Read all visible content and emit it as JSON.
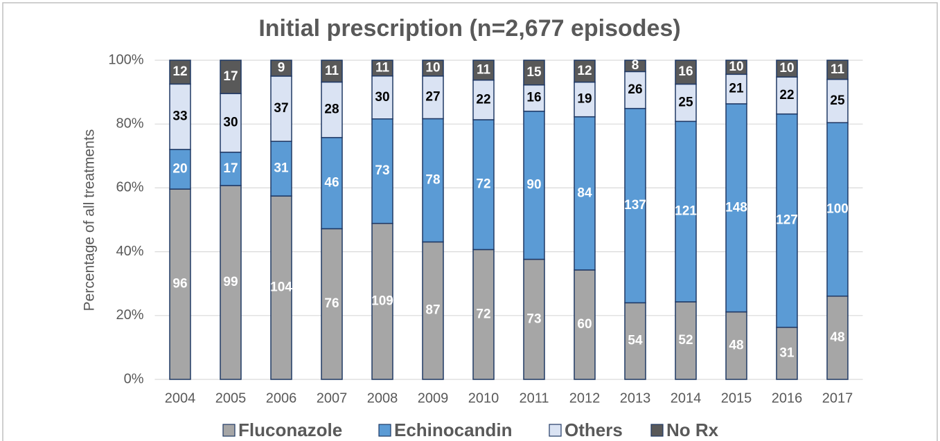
{
  "chart_data": {
    "type": "bar",
    "stacking": "percent",
    "title": "Initial prescription (n=2,677 episodes)",
    "y_label": "Percentage of all treatments",
    "categories": [
      "2004",
      "2005",
      "2006",
      "2007",
      "2008",
      "2009",
      "2010",
      "2011",
      "2012",
      "2013",
      "2014",
      "2015",
      "2016",
      "2017"
    ],
    "series": [
      {
        "name": "Fluconazole",
        "color": "#a6a6a6",
        "label_color": "#ffffff",
        "values": [
          96,
          99,
          104,
          76,
          109,
          87,
          72,
          73,
          60,
          54,
          52,
          48,
          31,
          48
        ]
      },
      {
        "name": "Echinocandin",
        "color": "#5b9bd5",
        "label_color": "#ffffff",
        "values": [
          20,
          17,
          31,
          46,
          73,
          78,
          72,
          90,
          84,
          137,
          121,
          148,
          127,
          100
        ]
      },
      {
        "name": "Others",
        "color": "#dae3f3",
        "label_color": "#000000",
        "values": [
          33,
          30,
          37,
          28,
          30,
          27,
          22,
          16,
          19,
          26,
          25,
          21,
          22,
          25
        ]
      },
      {
        "name": "No Rx",
        "color": "#595959",
        "label_color": "#ffffff",
        "values": [
          12,
          17,
          9,
          11,
          11,
          10,
          11,
          15,
          12,
          8,
          16,
          10,
          10,
          11
        ]
      }
    ],
    "ylim": [
      0,
      100
    ],
    "yticks": [
      {
        "value": 0,
        "label": "0%"
      },
      {
        "value": 20,
        "label": "20%"
      },
      {
        "value": 40,
        "label": "40%"
      },
      {
        "value": 60,
        "label": "60%"
      },
      {
        "value": 80,
        "label": "80%"
      },
      {
        "value": 100,
        "label": "100%"
      }
    ],
    "grid": true,
    "legend": "bottom"
  }
}
